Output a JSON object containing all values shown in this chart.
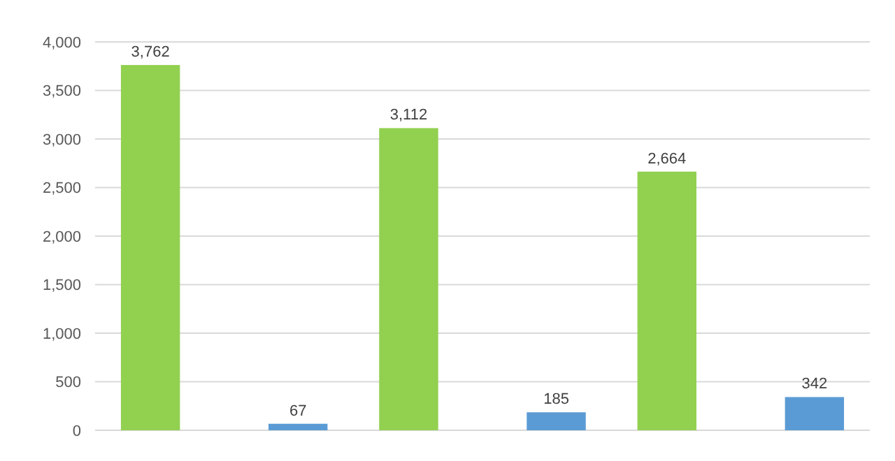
{
  "chart_data": {
    "type": "bar",
    "categories": [
      null,
      null,
      null
    ],
    "series": [
      {
        "color": "#92d050",
        "values": [
          3762,
          3112,
          2664
        ],
        "value_labels": [
          "3,762",
          "3,112",
          "2,664"
        ]
      },
      {
        "color": "#5b9bd5",
        "values": [
          67,
          185,
          342
        ],
        "value_labels": [
          "67",
          "185",
          "342"
        ]
      }
    ],
    "ylim": [
      0,
      4000
    ],
    "yticks": [
      {
        "value": 0,
        "label": "0"
      },
      {
        "value": 500,
        "label": "500"
      },
      {
        "value": 1000,
        "label": "1,000"
      },
      {
        "value": 1500,
        "label": "1,500"
      },
      {
        "value": 2000,
        "label": "2,000"
      },
      {
        "value": 2500,
        "label": "2,500"
      },
      {
        "value": 3000,
        "label": "3,000"
      },
      {
        "value": 3500,
        "label": "3,500"
      },
      {
        "value": 4000,
        "label": "4,000"
      }
    ],
    "grid": "y"
  }
}
